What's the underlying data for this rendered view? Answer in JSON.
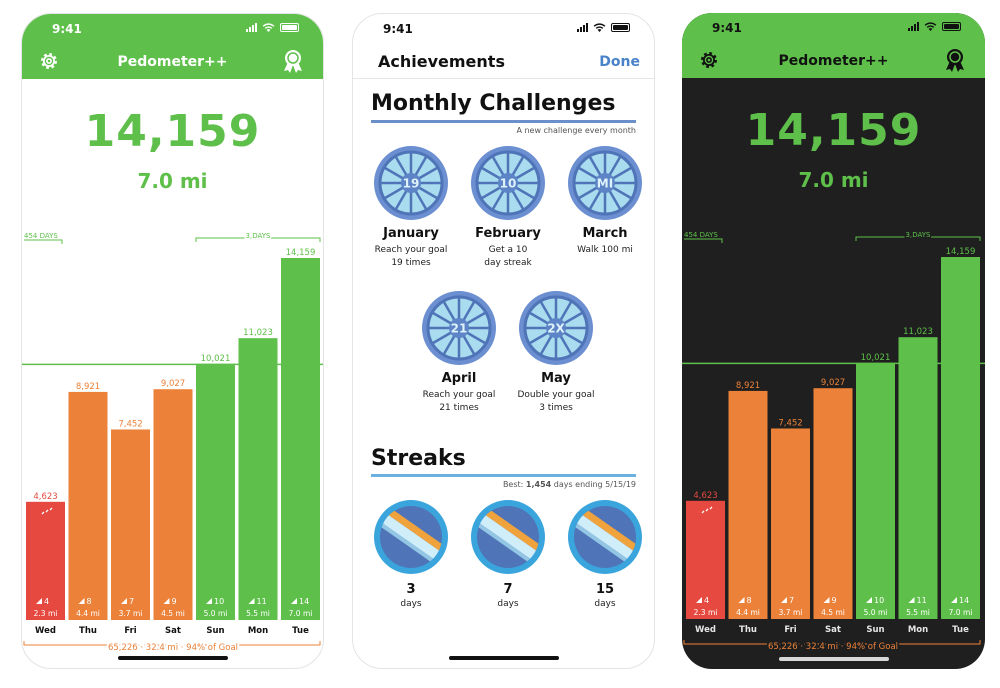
{
  "status": {
    "time": "9:41"
  },
  "app": {
    "title": "Pedometer++"
  },
  "today": {
    "steps": "14,159",
    "distance": "7.0 mi"
  },
  "chart_data": {
    "type": "bar",
    "categories": [
      "Wed",
      "Thu",
      "Fri",
      "Sat",
      "Sun",
      "Mon",
      "Tue"
    ],
    "values": [
      4623,
      8921,
      7452,
      9027,
      10021,
      11023,
      14159
    ],
    "value_labels": [
      "4,623",
      "8,921",
      "7,452",
      "9,027",
      "10,021",
      "11,023",
      "14,159"
    ],
    "floors": [
      "4",
      "8",
      "7",
      "9",
      "10",
      "11",
      "14"
    ],
    "distances": [
      "2.3 mi",
      "4.4 mi",
      "3.7 mi",
      "4.5 mi",
      "5.0 mi",
      "5.5 mi",
      "7.0 mi"
    ],
    "goal": 10000,
    "ylim": [
      0,
      14159
    ],
    "streak_left_label": "454 DAYS",
    "streak_right_label": "3 DAYS",
    "footer": "65,226 · 32.4 mi · 94% of Goal",
    "colors": {
      "below_goal": "#ec8139",
      "first_day": "#e5493f",
      "met_goal": "#5ec04a",
      "goal_line": "#5ec04a"
    }
  },
  "achievements": {
    "title": "Achievements",
    "done": "Done",
    "monthly": {
      "title": "Monthly Challenges",
      "subtitle": "A new challenge every month",
      "items": [
        {
          "center": "19",
          "name": "January",
          "desc1": "Reach your goal",
          "desc2": "19 times"
        },
        {
          "center": "10",
          "name": "February",
          "desc1": "Get a 10",
          "desc2": "day streak"
        },
        {
          "center": "MI",
          "name": "March",
          "desc1": "Walk 100 mi",
          "desc2": ""
        },
        {
          "center": "21",
          "name": "April",
          "desc1": "Reach your goal",
          "desc2": "21 times"
        },
        {
          "center": "2X",
          "name": "May",
          "desc1": "Double your goal",
          "desc2": "3 times"
        }
      ]
    },
    "streaks": {
      "title": "Streaks",
      "best_prefix": "Best: ",
      "best_value": "1,454",
      "best_suffix": " days ending 5/15/19",
      "items": [
        {
          "value": "3",
          "unit": "days"
        },
        {
          "value": "7",
          "unit": "days"
        },
        {
          "value": "15",
          "unit": "days"
        }
      ]
    }
  },
  "colors": {
    "green": "#5ec04a",
    "orange": "#ec8139",
    "red": "#e5493f",
    "blue": "#4a82c9",
    "dark_bg": "#1f1f1f"
  },
  "icons": {
    "settings": "gear-icon",
    "achievements": "award-ribbon-icon",
    "floors": "stairs-icon"
  }
}
